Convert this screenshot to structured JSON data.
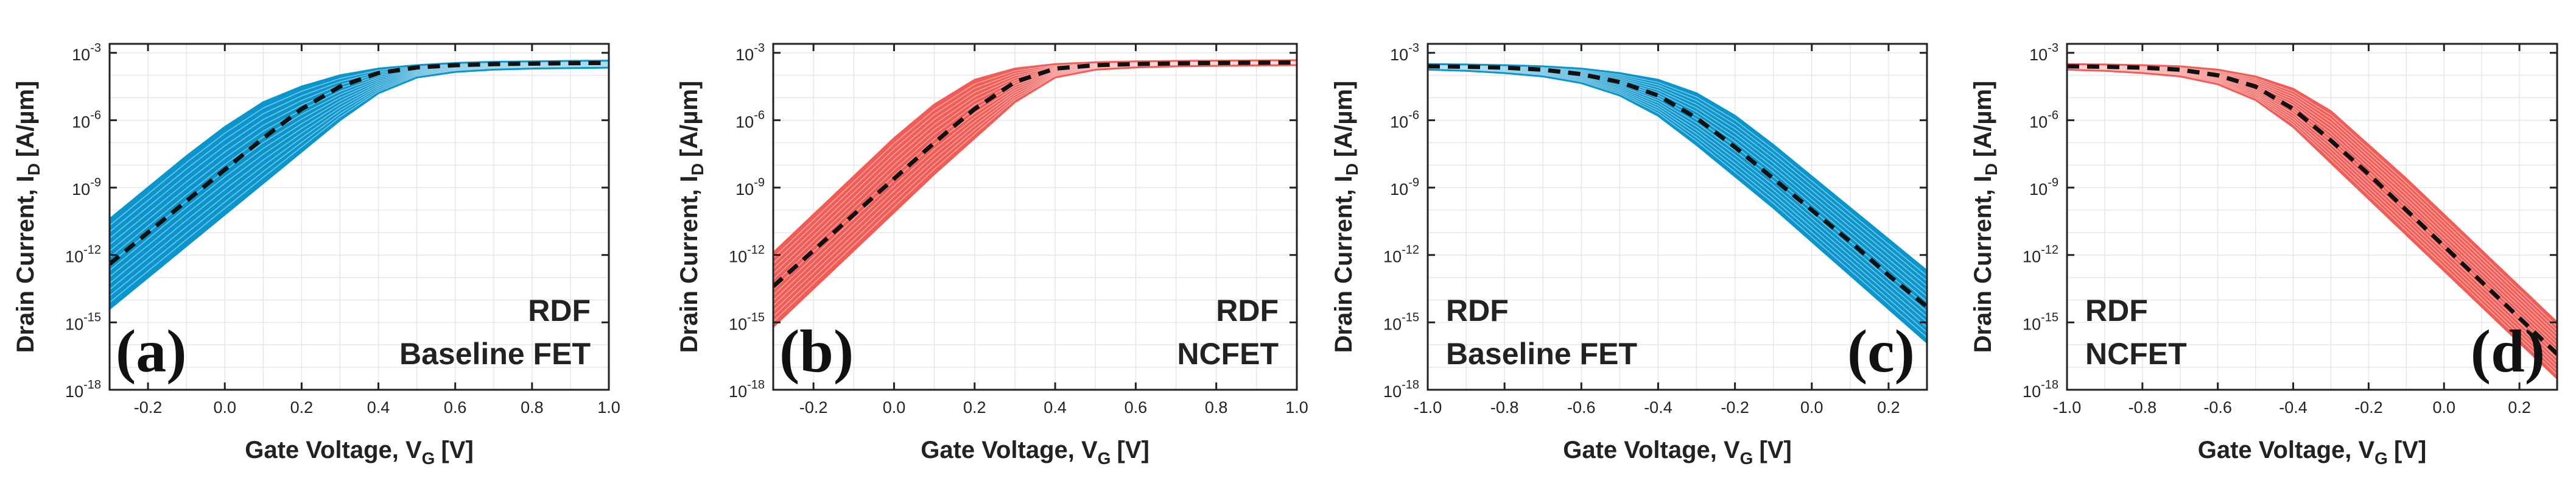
{
  "chart_data": [
    {
      "type": "line",
      "panel_label": "(a)",
      "annotation": [
        "RDF",
        "Baseline FET"
      ],
      "xlabel": "Gate Voltage, V",
      "xlabel_sub": "G",
      "xlabel_unit": "[V]",
      "ylabel": "Drain Current, I",
      "ylabel_sub": "D",
      "ylabel_unit": "[A/µm]",
      "xlim": [
        -0.3,
        1.0
      ],
      "ylim_exp": [
        -18,
        -2.6
      ],
      "yscale": "log",
      "xticks": [
        -0.2,
        0.0,
        0.2,
        0.4,
        0.6,
        0.8,
        1.0
      ],
      "xtick_labels": [
        "-0.2",
        "0.0",
        "0.2",
        "0.4",
        "0.6",
        "0.8",
        "1.0"
      ],
      "yticks_exp": [
        -3,
        -6,
        -9,
        -12,
        -15,
        -18
      ],
      "ytick_base": "10",
      "ytick_exps": [
        "-3",
        "-6",
        "-9",
        "-12",
        "-15",
        "-18"
      ],
      "band_color": "#0a95cc",
      "mean_color": "#111111",
      "grid": true,
      "direction": "n",
      "series": [
        {
          "role": "mean",
          "x": [
            -0.3,
            -0.2,
            -0.1,
            0.0,
            0.1,
            0.2,
            0.3,
            0.4,
            0.5,
            0.6,
            0.7,
            0.8,
            0.9,
            1.0
          ],
          "y_exp": [
            -12.4,
            -11.0,
            -9.6,
            -8.2,
            -6.8,
            -5.5,
            -4.5,
            -3.9,
            -3.65,
            -3.55,
            -3.5,
            -3.48,
            -3.46,
            -3.45
          ]
        },
        {
          "role": "band_upper",
          "x": [
            -0.3,
            -0.2,
            -0.1,
            0.0,
            0.1,
            0.2,
            0.3,
            0.4,
            0.5,
            0.6,
            0.7,
            0.8,
            0.9,
            1.0
          ],
          "y_exp": [
            -10.4,
            -9.0,
            -7.6,
            -6.3,
            -5.2,
            -4.5,
            -4.0,
            -3.7,
            -3.55,
            -3.45,
            -3.4,
            -3.38,
            -3.36,
            -3.35
          ]
        },
        {
          "role": "band_lower",
          "x": [
            -0.3,
            -0.2,
            -0.1,
            0.0,
            0.1,
            0.2,
            0.3,
            0.4,
            0.5,
            0.6,
            0.7,
            0.8,
            0.9,
            1.0
          ],
          "y_exp": [
            -14.4,
            -13.0,
            -11.6,
            -10.2,
            -8.8,
            -7.4,
            -6.0,
            -4.8,
            -4.1,
            -3.85,
            -3.75,
            -3.7,
            -3.68,
            -3.66
          ]
        }
      ]
    },
    {
      "type": "line",
      "panel_label": "(b)",
      "annotation": [
        "RDF",
        "NCFET"
      ],
      "xlabel": "Gate Voltage, V",
      "xlabel_sub": "G",
      "xlabel_unit": "[V]",
      "ylabel": "Drain Current, I",
      "ylabel_sub": "D",
      "ylabel_unit": "[A/µm]",
      "xlim": [
        -0.3,
        1.0
      ],
      "ylim_exp": [
        -18,
        -2.6
      ],
      "yscale": "log",
      "xticks": [
        -0.2,
        0.0,
        0.2,
        0.4,
        0.6,
        0.8,
        1.0
      ],
      "xtick_labels": [
        "-0.2",
        "0.0",
        "0.2",
        "0.4",
        "0.6",
        "0.8",
        "1.0"
      ],
      "yticks_exp": [
        -3,
        -6,
        -9,
        -12,
        -15,
        -18
      ],
      "ytick_base": "10",
      "ytick_exps": [
        "-3",
        "-6",
        "-9",
        "-12",
        "-15",
        "-18"
      ],
      "band_color": "#f25c57",
      "mean_color": "#111111",
      "grid": true,
      "direction": "n",
      "series": [
        {
          "role": "mean",
          "x": [
            -0.3,
            -0.2,
            -0.1,
            0.0,
            0.1,
            0.2,
            0.3,
            0.4,
            0.5,
            0.6,
            0.7,
            0.8,
            0.9,
            1.0
          ],
          "y_exp": [
            -13.4,
            -11.8,
            -10.2,
            -8.6,
            -7.0,
            -5.5,
            -4.3,
            -3.7,
            -3.55,
            -3.5,
            -3.47,
            -3.45,
            -3.44,
            -3.43
          ]
        },
        {
          "role": "band_upper",
          "x": [
            -0.3,
            -0.2,
            -0.1,
            0.0,
            0.1,
            0.2,
            0.3,
            0.4,
            0.5,
            0.6,
            0.7,
            0.8,
            0.9,
            1.0
          ],
          "y_exp": [
            -11.9,
            -10.2,
            -8.5,
            -6.8,
            -5.3,
            -4.2,
            -3.7,
            -3.5,
            -3.42,
            -3.38,
            -3.36,
            -3.35,
            -3.34,
            -3.33
          ]
        },
        {
          "role": "band_lower",
          "x": [
            -0.3,
            -0.2,
            -0.1,
            0.0,
            0.1,
            0.2,
            0.3,
            0.4,
            0.5,
            0.6,
            0.7,
            0.8,
            0.9,
            1.0
          ],
          "y_exp": [
            -15.2,
            -13.5,
            -11.8,
            -10.1,
            -8.4,
            -6.8,
            -5.2,
            -4.1,
            -3.75,
            -3.65,
            -3.6,
            -3.58,
            -3.56,
            -3.55
          ]
        }
      ]
    },
    {
      "type": "line",
      "panel_label": "(c)",
      "annotation": [
        "RDF",
        "Baseline FET"
      ],
      "xlabel": "Gate Voltage, V",
      "xlabel_sub": "G",
      "xlabel_unit": "[V]",
      "ylabel": "Drain Current, I",
      "ylabel_sub": "D",
      "ylabel_unit": "[A/µm]",
      "xlim": [
        -1.0,
        0.3
      ],
      "ylim_exp": [
        -18,
        -2.6
      ],
      "yscale": "log",
      "xticks": [
        -1.0,
        -0.8,
        -0.6,
        -0.4,
        -0.2,
        0.0,
        0.2
      ],
      "xtick_labels": [
        "-1.0",
        "-0.8",
        "-0.6",
        "-0.4",
        "-0.2",
        "0.0",
        "0.2"
      ],
      "yticks_exp": [
        -3,
        -6,
        -9,
        -12,
        -15,
        -18
      ],
      "ytick_base": "10",
      "ytick_exps": [
        "-3",
        "-6",
        "-9",
        "-12",
        "-15",
        "-18"
      ],
      "band_color": "#0a95cc",
      "mean_color": "#111111",
      "grid": true,
      "direction": "p",
      "series": [
        {
          "role": "mean",
          "x": [
            -1.0,
            -0.9,
            -0.8,
            -0.7,
            -0.6,
            -0.5,
            -0.4,
            -0.3,
            -0.2,
            -0.1,
            0.0,
            0.1,
            0.2,
            0.3
          ],
          "y_exp": [
            -3.6,
            -3.62,
            -3.66,
            -3.75,
            -3.95,
            -4.3,
            -4.9,
            -5.9,
            -7.2,
            -8.6,
            -10.0,
            -11.4,
            -12.9,
            -14.3
          ]
        },
        {
          "role": "band_upper",
          "x": [
            -1.0,
            -0.9,
            -0.8,
            -0.7,
            -0.6,
            -0.5,
            -0.4,
            -0.3,
            -0.2,
            -0.1,
            0.0,
            0.1,
            0.2,
            0.3
          ],
          "y_exp": [
            -3.5,
            -3.52,
            -3.55,
            -3.6,
            -3.7,
            -3.9,
            -4.2,
            -4.8,
            -5.8,
            -7.1,
            -8.5,
            -9.9,
            -11.3,
            -12.7
          ]
        },
        {
          "role": "band_lower",
          "x": [
            -1.0,
            -0.9,
            -0.8,
            -0.7,
            -0.6,
            -0.5,
            -0.4,
            -0.3,
            -0.2,
            -0.1,
            0.0,
            0.1,
            0.2,
            0.3
          ],
          "y_exp": [
            -3.75,
            -3.8,
            -3.9,
            -4.05,
            -4.35,
            -4.9,
            -5.8,
            -7.1,
            -8.5,
            -9.9,
            -11.4,
            -12.9,
            -14.4,
            -15.9
          ]
        }
      ]
    },
    {
      "type": "line",
      "panel_label": "(d)",
      "annotation": [
        "RDF",
        "NCFET"
      ],
      "xlabel": "Gate Voltage, V",
      "xlabel_sub": "G",
      "xlabel_unit": "[V]",
      "ylabel": "Drain Current, I",
      "ylabel_sub": "D",
      "ylabel_unit": "[A/µm]",
      "xlim": [
        -1.0,
        0.3
      ],
      "ylim_exp": [
        -18,
        -2.6
      ],
      "yscale": "log",
      "xticks": [
        -1.0,
        -0.8,
        -0.6,
        -0.4,
        -0.2,
        0.0,
        0.2
      ],
      "xtick_labels": [
        "-1.0",
        "-0.8",
        "-0.6",
        "-0.4",
        "-0.2",
        "0.0",
        "0.2"
      ],
      "yticks_exp": [
        -3,
        -6,
        -9,
        -12,
        -15,
        -18
      ],
      "ytick_base": "10",
      "ytick_exps": [
        "-3",
        "-6",
        "-9",
        "-12",
        "-15",
        "-18"
      ],
      "band_color": "#f25c57",
      "mean_color": "#111111",
      "grid": true,
      "direction": "p",
      "series": [
        {
          "role": "mean",
          "x": [
            -1.0,
            -0.9,
            -0.8,
            -0.7,
            -0.6,
            -0.5,
            -0.4,
            -0.3,
            -0.2,
            -0.1,
            0.0,
            0.1,
            0.2,
            0.3
          ],
          "y_exp": [
            -3.6,
            -3.62,
            -3.66,
            -3.75,
            -4.0,
            -4.5,
            -5.5,
            -6.9,
            -8.4,
            -10.0,
            -11.6,
            -13.2,
            -14.8,
            -16.4
          ]
        },
        {
          "role": "band_upper",
          "x": [
            -1.0,
            -0.9,
            -0.8,
            -0.7,
            -0.6,
            -0.5,
            -0.4,
            -0.3,
            -0.2,
            -0.1,
            0.0,
            0.1,
            0.2,
            0.3
          ],
          "y_exp": [
            -3.5,
            -3.52,
            -3.55,
            -3.6,
            -3.75,
            -4.05,
            -4.6,
            -5.6,
            -7.1,
            -8.6,
            -10.2,
            -11.8,
            -13.4,
            -15.0
          ]
        },
        {
          "role": "band_lower",
          "x": [
            -1.0,
            -0.9,
            -0.8,
            -0.7,
            -0.6,
            -0.5,
            -0.4,
            -0.3,
            -0.2,
            -0.1,
            0.0,
            0.1,
            0.2,
            0.3
          ],
          "y_exp": [
            -3.75,
            -3.8,
            -3.9,
            -4.05,
            -4.4,
            -5.1,
            -6.3,
            -7.9,
            -9.5,
            -11.1,
            -12.7,
            -14.3,
            -15.9,
            -17.5
          ]
        }
      ]
    }
  ]
}
